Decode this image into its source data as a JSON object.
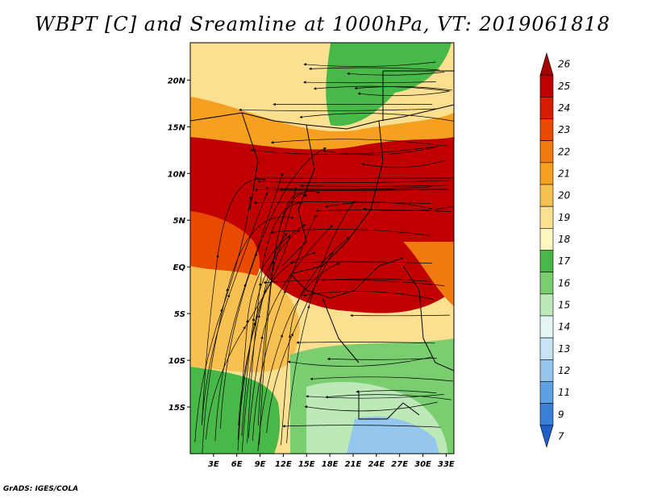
{
  "title": "WBPT [C] and Sreamline at 1000hPa, VT: 2019061818",
  "credit": "GrADS: IGES/COLA",
  "lat_labels": [
    "20N",
    "15N",
    "10N",
    "5N",
    "EQ",
    "5S",
    "10S",
    "15S"
  ],
  "lat_values": [
    20,
    15,
    10,
    5,
    0,
    -5,
    -10,
    -15
  ],
  "lon_labels": [
    "3E",
    "6E",
    "9E",
    "12E",
    "15E",
    "18E",
    "21E",
    "24E",
    "27E",
    "30E",
    "33E"
  ],
  "lon_values": [
    3,
    6,
    9,
    12,
    15,
    18,
    21,
    24,
    27,
    30,
    33
  ],
  "lat_range": [
    -20,
    24
  ],
  "lon_range": [
    0,
    34
  ],
  "colorbar": {
    "labels": [
      "26",
      "25",
      "24",
      "23",
      "22",
      "21",
      "20",
      "19",
      "18",
      "17",
      "16",
      "15",
      "14",
      "13",
      "12",
      "11",
      "9",
      "7"
    ],
    "colors": [
      "#a50000",
      "#c00000",
      "#d81c00",
      "#e84a00",
      "#f07a10",
      "#f5a020",
      "#f8c050",
      "#fbe092",
      "#fff6c0",
      "#48b848",
      "#7ace70",
      "#bde8b8",
      "#e4f6f4",
      "#c6e4f5",
      "#94c6ee",
      "#5ea0e4",
      "#3a80d8",
      "#1e60c8"
    ]
  },
  "regions": {
    "north_desert": "#fbe092",
    "sahel_band": "#f5a020",
    "tropical_core": "#c00000",
    "atlantic": "#e84a00",
    "coastal_waters": "#f8c050",
    "southern_land": "#7ace70",
    "south_atlantic": "#48b848",
    "kalahari": "#bde8b8",
    "cool_pocket": "#94c6ee",
    "east_highlands": "#f07a10"
  },
  "streamlines": {
    "count": 60,
    "southerly_fraction": 0.35
  }
}
